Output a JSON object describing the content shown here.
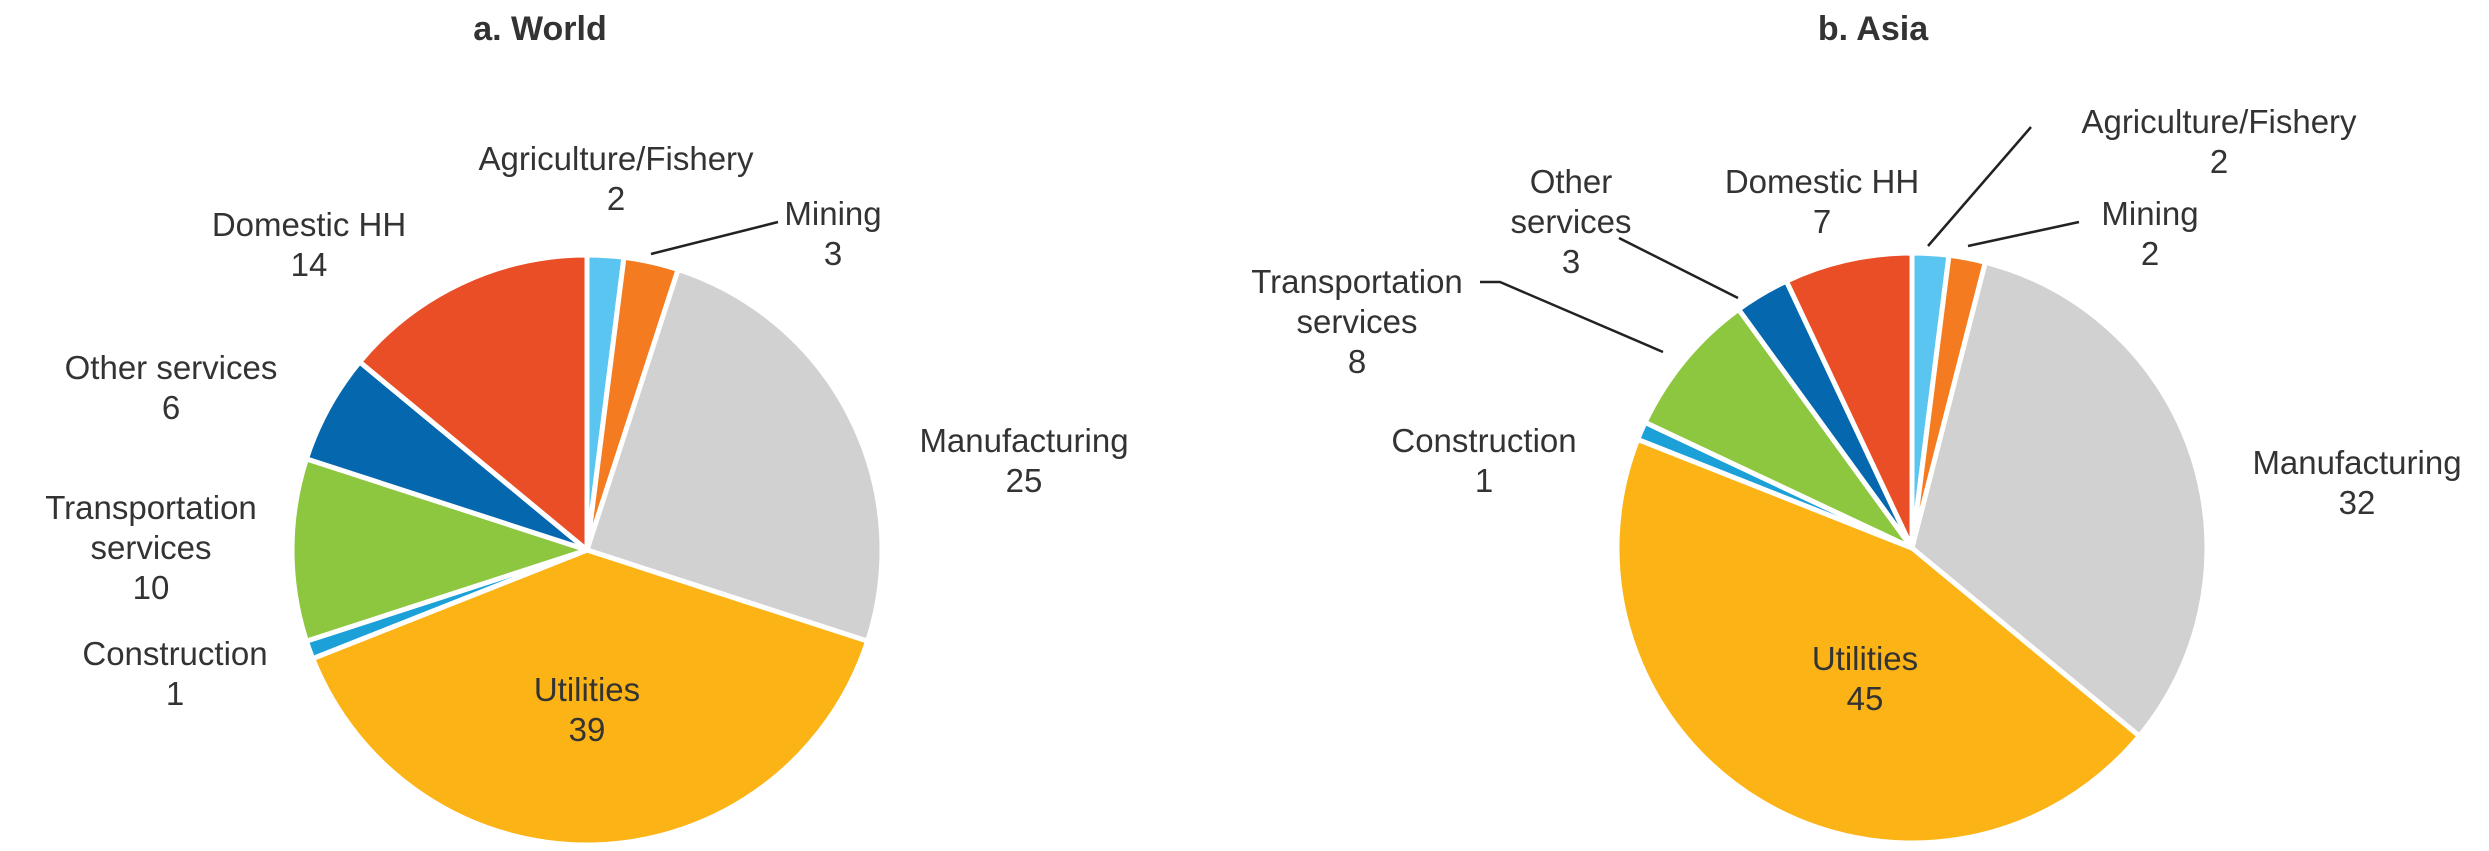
{
  "chart_data": [
    {
      "type": "pie",
      "title": "a. World",
      "categories": [
        "Agriculture/Fishery",
        "Mining",
        "Manufacturing",
        "Utilities",
        "Construction",
        "Transportation services",
        "Other services",
        "Domestic HH"
      ],
      "values": [
        2,
        3,
        25,
        39,
        1,
        10,
        6,
        14
      ],
      "colors": [
        "#5bc5f2",
        "#f47b20",
        "#d1d1d1",
        "#fbb316",
        "#1ba1d8",
        "#8dc63f",
        "#0568ae",
        "#e94e26"
      ]
    },
    {
      "type": "pie",
      "title": "b. Asia",
      "categories": [
        "Agriculture/Fishery",
        "Mining",
        "Manufacturing",
        "Utilities",
        "Construction",
        "Transportation services",
        "Other services",
        "Domestic HH"
      ],
      "values": [
        2,
        2,
        32,
        45,
        1,
        8,
        3,
        7
      ],
      "colors": [
        "#5bc5f2",
        "#f47b20",
        "#d1d1d1",
        "#fbb316",
        "#1ba1d8",
        "#8dc63f",
        "#0568ae",
        "#e94e26"
      ]
    }
  ]
}
